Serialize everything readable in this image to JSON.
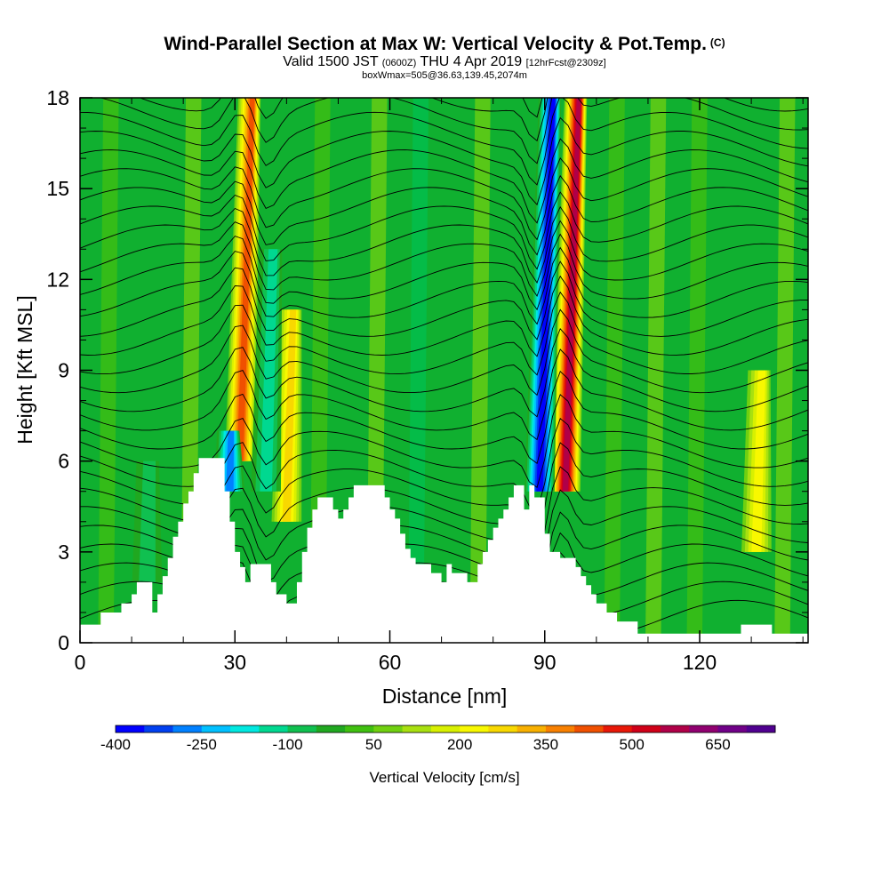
{
  "title": {
    "main": "Wind-Parallel Section at Max W: Vertical Velocity & Pot.Temp.",
    "copyright": "(C)",
    "valid_prefix": "Valid 1500 JST",
    "utc": "(0600Z)",
    "valid_date": "THU 4 Apr 2019",
    "forecast": "[12hrFcst@2309z]",
    "info": "boxWmax=505@36.63,139.45,2074m"
  },
  "chart_data": {
    "type": "heatmap",
    "xlabel": "Distance [nm]",
    "ylabel": "Height [Kft MSL]",
    "xlim": [
      0,
      141
    ],
    "ylim": [
      0,
      18
    ],
    "x_ticks": [
      "0",
      "30",
      "60",
      "90",
      "120"
    ],
    "x_tick_values": [
      0,
      30,
      60,
      90,
      120
    ],
    "y_ticks": [
      "0",
      "3",
      "6",
      "9",
      "12",
      "15",
      "18"
    ],
    "y_tick_values": [
      0,
      3,
      6,
      9,
      12,
      15,
      18
    ],
    "colorbar": {
      "label": "Vertical Velocity [cm/s]",
      "tick_labels": [
        "-400",
        "-250",
        "-100",
        "50",
        "200",
        "350",
        "500",
        "650"
      ],
      "colors": [
        "#0000ff",
        "#0040f0",
        "#0080ff",
        "#00c0ff",
        "#00e8e0",
        "#00d890",
        "#10c050",
        "#20a820",
        "#40c010",
        "#70d010",
        "#a8e010",
        "#d8f000",
        "#f8f800",
        "#f8d800",
        "#f8b000",
        "#f88000",
        "#f05000",
        "#e81808",
        "#d00018",
        "#b00048",
        "#900070",
        "#700088",
        "#500090"
      ]
    },
    "terrain_kft": [
      [
        0,
        0.6
      ],
      [
        4,
        0.6
      ],
      [
        4,
        1.0
      ],
      [
        8,
        1.0
      ],
      [
        8,
        1.3
      ],
      [
        10,
        1.3
      ],
      [
        10,
        1.6
      ],
      [
        11,
        1.6
      ],
      [
        11,
        2.0
      ],
      [
        14,
        2.0
      ],
      [
        14,
        1.0
      ],
      [
        15,
        1.0
      ],
      [
        15,
        1.6
      ],
      [
        16,
        1.6
      ],
      [
        16,
        2.2
      ],
      [
        17,
        2.2
      ],
      [
        17,
        2.8
      ],
      [
        18,
        2.8
      ],
      [
        18,
        3.5
      ],
      [
        19,
        3.5
      ],
      [
        19,
        4.0
      ],
      [
        20,
        4.0
      ],
      [
        20,
        4.6
      ],
      [
        21,
        4.6
      ],
      [
        21,
        5.0
      ],
      [
        22,
        5.0
      ],
      [
        22,
        5.6
      ],
      [
        23,
        5.6
      ],
      [
        23,
        6.1
      ],
      [
        28,
        6.1
      ],
      [
        28,
        5.0
      ],
      [
        29,
        5.0
      ],
      [
        29,
        4.0
      ],
      [
        30,
        4.0
      ],
      [
        30,
        3.0
      ],
      [
        31,
        3.0
      ],
      [
        31,
        2.5
      ],
      [
        32,
        2.5
      ],
      [
        32,
        2.0
      ],
      [
        33,
        2.0
      ],
      [
        33,
        2.6
      ],
      [
        37,
        2.6
      ],
      [
        37,
        2.0
      ],
      [
        38,
        2.0
      ],
      [
        38,
        1.6
      ],
      [
        40,
        1.6
      ],
      [
        40,
        1.3
      ],
      [
        42,
        1.3
      ],
      [
        42,
        2.0
      ],
      [
        43,
        2.0
      ],
      [
        43,
        3.0
      ],
      [
        44,
        3.0
      ],
      [
        44,
        3.8
      ],
      [
        45,
        3.8
      ],
      [
        45,
        4.4
      ],
      [
        46,
        4.4
      ],
      [
        46,
        4.8
      ],
      [
        49,
        4.8
      ],
      [
        49,
        4.4
      ],
      [
        50,
        4.4
      ],
      [
        50,
        4.1
      ],
      [
        51,
        4.1
      ],
      [
        51,
        4.4
      ],
      [
        52,
        4.4
      ],
      [
        52,
        4.8
      ],
      [
        53,
        4.8
      ],
      [
        53,
        5.2
      ],
      [
        59,
        5.2
      ],
      [
        59,
        4.8
      ],
      [
        60,
        4.8
      ],
      [
        60,
        4.4
      ],
      [
        61,
        4.4
      ],
      [
        61,
        4.1
      ],
      [
        62,
        4.1
      ],
      [
        62,
        3.6
      ],
      [
        63,
        3.6
      ],
      [
        63,
        3.1
      ],
      [
        64,
        3.1
      ],
      [
        64,
        2.8
      ],
      [
        65,
        2.8
      ],
      [
        65,
        2.6
      ],
      [
        68,
        2.6
      ],
      [
        68,
        2.3
      ],
      [
        70,
        2.3
      ],
      [
        70,
        2.0
      ],
      [
        71,
        2.0
      ],
      [
        71,
        2.6
      ],
      [
        72,
        2.6
      ],
      [
        72,
        2.3
      ],
      [
        75,
        2.3
      ],
      [
        75,
        2.0
      ],
      [
        77,
        2.0
      ],
      [
        77,
        2.6
      ],
      [
        78,
        2.6
      ],
      [
        78,
        3.0
      ],
      [
        79,
        3.0
      ],
      [
        79,
        3.4
      ],
      [
        80,
        3.4
      ],
      [
        80,
        3.8
      ],
      [
        81,
        3.8
      ],
      [
        81,
        4.1
      ],
      [
        82,
        4.1
      ],
      [
        82,
        4.4
      ],
      [
        83,
        4.4
      ],
      [
        83,
        4.8
      ],
      [
        84,
        4.8
      ],
      [
        84,
        5.2
      ],
      [
        86,
        5.2
      ],
      [
        86,
        4.4
      ],
      [
        87,
        4.4
      ],
      [
        87,
        5.2
      ],
      [
        88,
        5.2
      ],
      [
        88,
        4.8
      ],
      [
        90,
        4.8
      ],
      [
        90,
        3.6
      ],
      [
        91,
        3.6
      ],
      [
        91,
        3.0
      ],
      [
        93,
        3.0
      ],
      [
        93,
        2.8
      ],
      [
        96,
        2.8
      ],
      [
        96,
        2.5
      ],
      [
        97,
        2.5
      ],
      [
        97,
        2.2
      ],
      [
        98,
        2.2
      ],
      [
        98,
        1.9
      ],
      [
        99,
        1.9
      ],
      [
        99,
        1.6
      ],
      [
        100,
        1.6
      ],
      [
        100,
        1.3
      ],
      [
        102,
        1.3
      ],
      [
        102,
        1.0
      ],
      [
        104,
        1.0
      ],
      [
        104,
        0.7
      ],
      [
        108,
        0.7
      ],
      [
        108,
        0.3
      ],
      [
        128,
        0.3
      ],
      [
        128,
        0.6
      ],
      [
        134,
        0.6
      ],
      [
        134,
        0.3
      ],
      [
        141,
        0.3
      ]
    ],
    "updraft_cores": [
      {
        "center_nm": 31,
        "peak_cm_s": 420,
        "from_kft": 6,
        "to_kft": 18
      },
      {
        "center_nm": 40,
        "peak_cm_s": 250,
        "from_kft": 4,
        "to_kft": 11
      },
      {
        "center_nm": 94,
        "peak_cm_s": 560,
        "from_kft": 5,
        "to_kft": 18
      },
      {
        "center_nm": 131,
        "peak_cm_s": 180,
        "from_kft": 3,
        "to_kft": 9
      }
    ],
    "downdraft_cores": [
      {
        "center_nm": 29,
        "peak_cm_s": -300,
        "from_kft": 5,
        "to_kft": 7
      },
      {
        "center_nm": 36,
        "peak_cm_s": -150,
        "from_kft": 5,
        "to_kft": 13
      },
      {
        "center_nm": 89,
        "peak_cm_s": -400,
        "from_kft": 5,
        "to_kft": 18
      },
      {
        "center_nm": 13,
        "peak_cm_s": -120,
        "from_kft": 2,
        "to_kft": 6
      }
    ],
    "contours": "potential temperature (black lines)"
  }
}
